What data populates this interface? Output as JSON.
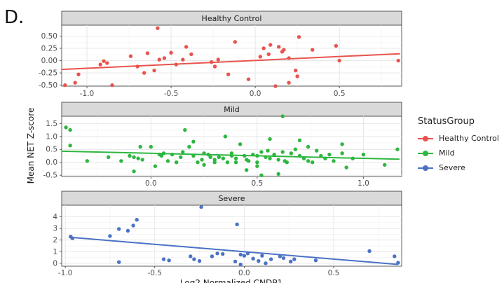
{
  "figure": {
    "panel_letter": "D."
  },
  "colors": {
    "Healthy Control": "#e8544e",
    "Mild": "#2eb640",
    "Severe": "#4b72c4"
  },
  "legend": {
    "title": "StatusGroup",
    "items": [
      "Healthy Control",
      "Mild",
      "Severe"
    ]
  },
  "chart_data": [
    {
      "type": "scatter",
      "title": "Healthy Control",
      "xlabel": "Log2 Normalized CNDP1",
      "ylabel": "Mean NET Z-score",
      "xlim": [
        -1.15,
        0.87
      ],
      "ylim": [
        -0.52,
        0.72
      ],
      "xticks": [
        -1.0,
        -0.5,
        0.0,
        0.5
      ],
      "yticks": [
        -0.5,
        -0.25,
        0.0,
        0.25,
        0.5
      ],
      "xticklabels": [
        "-1.0",
        "-0.5",
        "0.0",
        "0.5"
      ],
      "yticklabels": [
        "-0.50",
        "-0.25",
        "0.00",
        "0.25",
        "0.50"
      ],
      "trend": {
        "x": [
          -1.15,
          0.86
        ],
        "y": [
          -0.18,
          0.14
        ]
      },
      "points": [
        [
          -1.13,
          -0.5
        ],
        [
          -1.07,
          -0.45
        ],
        [
          -1.05,
          -0.28
        ],
        [
          -0.92,
          -0.08
        ],
        [
          -0.9,
          -0.01
        ],
        [
          -0.88,
          -0.05
        ],
        [
          -0.85,
          -0.5
        ],
        [
          -0.74,
          0.09
        ],
        [
          -0.7,
          -0.12
        ],
        [
          -0.66,
          -0.25
        ],
        [
          -0.64,
          0.15
        ],
        [
          -0.6,
          -0.2
        ],
        [
          -0.58,
          0.66
        ],
        [
          -0.57,
          0.02
        ],
        [
          -0.54,
          0.05
        ],
        [
          -0.5,
          0.16
        ],
        [
          -0.47,
          -0.08
        ],
        [
          -0.43,
          0.02
        ],
        [
          -0.41,
          0.28
        ],
        [
          -0.38,
          0.13
        ],
        [
          -0.26,
          -0.03
        ],
        [
          -0.24,
          -0.12
        ],
        [
          -0.22,
          0.02
        ],
        [
          -0.16,
          -0.28
        ],
        [
          -0.12,
          0.38
        ],
        [
          -0.04,
          -0.38
        ],
        [
          0.03,
          0.08
        ],
        [
          0.05,
          0.25
        ],
        [
          0.08,
          0.13
        ],
        [
          0.09,
          0.32
        ],
        [
          0.12,
          -0.52
        ],
        [
          0.14,
          0.28
        ],
        [
          0.16,
          0.18
        ],
        [
          0.17,
          0.22
        ],
        [
          0.2,
          -0.45
        ],
        [
          0.2,
          0.05
        ],
        [
          0.24,
          -0.2
        ],
        [
          0.25,
          -0.32
        ],
        [
          0.26,
          0.48
        ],
        [
          0.34,
          0.22
        ],
        [
          0.48,
          0.3
        ],
        [
          0.5,
          0.0
        ],
        [
          0.85,
          0.0
        ]
      ]
    },
    {
      "type": "scatter",
      "title": "Mild",
      "xlabel": "Log2 Normalized CNDP1",
      "ylabel": "Mean NET Z-score",
      "xlim": [
        -0.42,
        1.18
      ],
      "ylim": [
        -0.55,
        1.78
      ],
      "xticks": [
        0.0,
        0.5,
        1.0
      ],
      "yticks": [
        -0.5,
        0.0,
        0.5,
        1.0,
        1.5
      ],
      "xticklabels": [
        "0.0",
        "0.5",
        "1.0"
      ],
      "yticklabels": [
        "-0.5",
        "0.0",
        "0.5",
        "1.0",
        "1.5"
      ],
      "trend": {
        "x": [
          -0.42,
          1.17
        ],
        "y": [
          0.43,
          0.12
        ]
      },
      "points": [
        [
          -0.4,
          1.35
        ],
        [
          -0.38,
          1.25
        ],
        [
          -0.38,
          0.65
        ],
        [
          -0.3,
          0.05
        ],
        [
          -0.2,
          0.2
        ],
        [
          -0.14,
          0.05
        ],
        [
          -0.1,
          0.25
        ],
        [
          -0.08,
          0.2
        ],
        [
          -0.08,
          -0.35
        ],
        [
          -0.06,
          0.15
        ],
        [
          -0.04,
          0.1
        ],
        [
          0.0,
          0.6
        ],
        [
          0.02,
          -0.15
        ],
        [
          0.04,
          0.3
        ],
        [
          0.05,
          0.25
        ],
        [
          0.08,
          0.05
        ],
        [
          0.1,
          0.3
        ],
        [
          0.12,
          0.0
        ],
        [
          0.14,
          0.2
        ],
        [
          0.15,
          0.4
        ],
        [
          0.16,
          1.25
        ],
        [
          0.18,
          0.6
        ],
        [
          0.2,
          0.25
        ],
        [
          0.22,
          0.0
        ],
        [
          0.24,
          0.1
        ],
        [
          0.25,
          0.35
        ],
        [
          0.27,
          0.3
        ],
        [
          0.28,
          0.2
        ],
        [
          0.3,
          0.1
        ],
        [
          0.3,
          0.0
        ],
        [
          0.32,
          0.2
        ],
        [
          0.34,
          0.15
        ],
        [
          0.35,
          1.0
        ],
        [
          0.36,
          0.0
        ],
        [
          0.38,
          0.35
        ],
        [
          0.38,
          0.25
        ],
        [
          0.4,
          0.15
        ],
        [
          0.4,
          0.0
        ],
        [
          0.42,
          0.7
        ],
        [
          0.44,
          0.25
        ],
        [
          0.45,
          0.1
        ],
        [
          0.46,
          0.05
        ],
        [
          0.48,
          0.3
        ],
        [
          0.5,
          0.25
        ],
        [
          0.5,
          0.0
        ],
        [
          0.5,
          -0.15
        ],
        [
          0.52,
          0.4
        ],
        [
          0.52,
          -0.5
        ],
        [
          0.54,
          0.2
        ],
        [
          0.55,
          0.45
        ],
        [
          0.56,
          0.15
        ],
        [
          0.58,
          0.3
        ],
        [
          0.6,
          0.1
        ],
        [
          0.6,
          -0.45
        ],
        [
          0.62,
          0.4
        ],
        [
          0.63,
          0.05
        ],
        [
          0.64,
          0.0
        ],
        [
          0.66,
          0.35
        ],
        [
          0.68,
          0.5
        ],
        [
          0.7,
          0.25
        ],
        [
          0.72,
          0.15
        ],
        [
          0.74,
          0.6
        ],
        [
          0.76,
          0.0
        ],
        [
          0.78,
          0.45
        ],
        [
          0.8,
          0.25
        ],
        [
          0.82,
          0.15
        ],
        [
          0.84,
          0.3
        ],
        [
          0.86,
          0.05
        ],
        [
          0.9,
          0.7
        ],
        [
          0.92,
          -0.2
        ],
        [
          0.95,
          0.15
        ],
        [
          1.0,
          0.3
        ],
        [
          1.1,
          -0.1
        ],
        [
          1.16,
          0.5
        ],
        [
          0.62,
          1.78
        ],
        [
          0.7,
          0.85
        ],
        [
          0.74,
          0.05
        ],
        [
          0.56,
          0.9
        ],
        [
          -0.05,
          0.6
        ],
        [
          0.2,
          0.8
        ],
        [
          0.45,
          -0.3
        ],
        [
          0.25,
          -0.1
        ],
        [
          0.06,
          0.35
        ],
        [
          0.9,
          0.35
        ]
      ]
    },
    {
      "type": "scatter",
      "title": "Severe",
      "xlabel": "Log2 Normalized CNDP1",
      "ylabel": "Mean NET Z-score",
      "xlim": [
        -1.02,
        0.88
      ],
      "ylim": [
        -0.25,
        5.0
      ],
      "xticks": [
        -1.0,
        -0.5,
        0.0,
        0.5
      ],
      "yticks": [
        0,
        1,
        2,
        3,
        4
      ],
      "xticklabels": [
        "-1.0",
        "-0.5",
        "0.0",
        "0.5"
      ],
      "yticklabels": [
        "0",
        "1",
        "2",
        "3",
        "4"
      ],
      "trend": {
        "x": [
          -0.98,
          0.86
        ],
        "y": [
          2.25,
          -0.1
        ]
      },
      "points": [
        [
          -0.97,
          2.3
        ],
        [
          -0.96,
          2.15
        ],
        [
          -0.75,
          2.35
        ],
        [
          -0.7,
          0.1
        ],
        [
          -0.7,
          2.95
        ],
        [
          -0.65,
          2.8
        ],
        [
          -0.62,
          3.25
        ],
        [
          -0.6,
          3.75
        ],
        [
          -0.45,
          0.35
        ],
        [
          -0.42,
          0.25
        ],
        [
          -0.3,
          0.6
        ],
        [
          -0.28,
          0.35
        ],
        [
          -0.25,
          0.2
        ],
        [
          -0.24,
          4.85
        ],
        [
          -0.15,
          0.85
        ],
        [
          -0.12,
          0.8
        ],
        [
          -0.05,
          0.15
        ],
        [
          -0.04,
          3.35
        ],
        [
          -0.02,
          0.75
        ],
        [
          0.0,
          0.65
        ],
        [
          0.05,
          0.4
        ],
        [
          0.08,
          0.2
        ],
        [
          0.1,
          0.65
        ],
        [
          0.15,
          0.35
        ],
        [
          0.2,
          0.6
        ],
        [
          0.22,
          0.45
        ],
        [
          0.26,
          0.15
        ],
        [
          0.28,
          0.35
        ],
        [
          0.4,
          0.25
        ],
        [
          0.7,
          1.05
        ],
        [
          0.84,
          0.6
        ],
        [
          0.86,
          0.05
        ],
        [
          -0.02,
          -0.1
        ],
        [
          0.02,
          0.85
        ],
        [
          0.12,
          0.0
        ],
        [
          -0.18,
          0.6
        ]
      ]
    }
  ]
}
